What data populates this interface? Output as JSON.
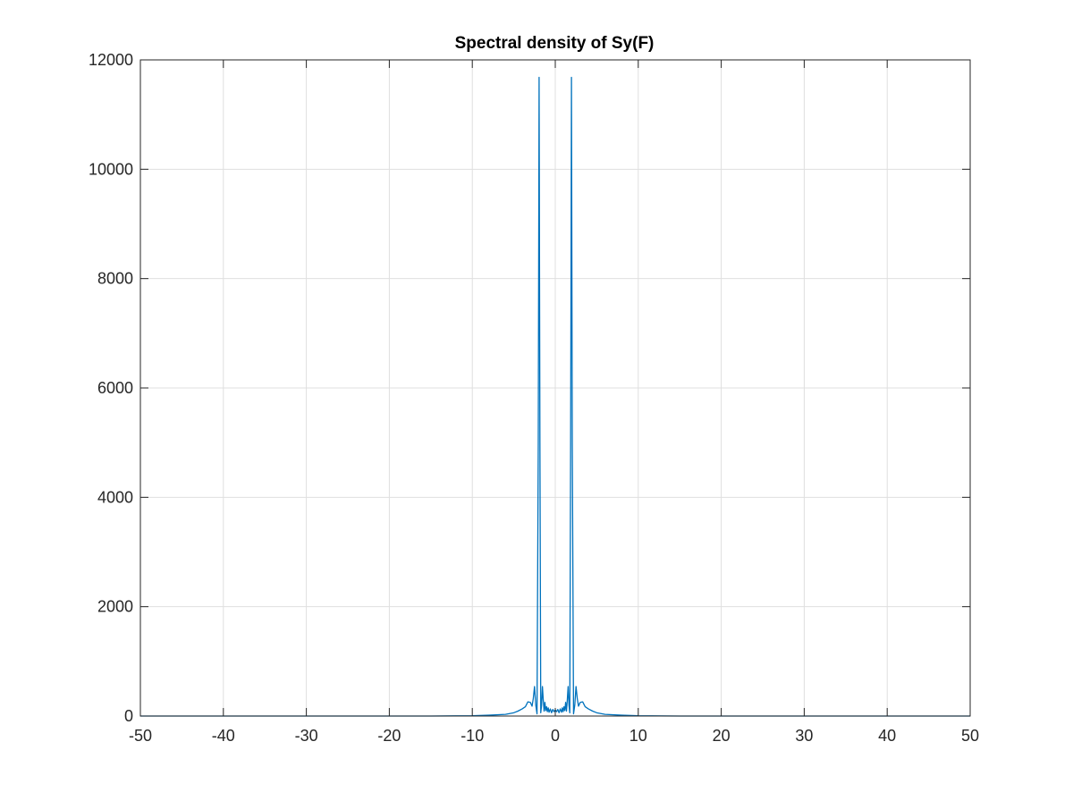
{
  "chart_data": {
    "type": "line",
    "title": "Spectral density of Sy(F)",
    "xlabel": "",
    "ylabel": "",
    "xlim": [
      -50,
      50
    ],
    "ylim": [
      0,
      12000
    ],
    "x_ticks": [
      -50,
      -40,
      -30,
      -20,
      -10,
      0,
      10,
      20,
      30,
      40,
      50
    ],
    "y_ticks": [
      0,
      2000,
      4000,
      6000,
      8000,
      10000,
      12000
    ],
    "x_tick_labels": [
      "-50",
      "-40",
      "-30",
      "-20",
      "-10",
      "0",
      "10",
      "20",
      "30",
      "40",
      "50"
    ],
    "y_tick_labels": [
      "0",
      "2000",
      "4000",
      "6000",
      "8000",
      "10000",
      "12000"
    ],
    "grid": true,
    "box": true,
    "series": [
      {
        "color": "#0072BD",
        "x": [
          -50,
          -15,
          -10,
          -8,
          -6,
          -5,
          -4.5,
          -4,
          -3.6,
          -3.3,
          -3.0,
          -2.8,
          -2.65,
          -2.5,
          -2.35,
          -2.2,
          -2.05,
          -1.95,
          -1.85,
          -1.75,
          -1.65,
          -1.55,
          -1.45,
          -1.35,
          -1.25,
          -1.15,
          -1.05,
          -0.95,
          -0.85,
          -0.75,
          -0.6,
          -0.45,
          -0.3,
          -0.15,
          0,
          0.15,
          0.3,
          0.45,
          0.6,
          0.75,
          0.85,
          0.95,
          1.05,
          1.15,
          1.25,
          1.35,
          1.45,
          1.55,
          1.65,
          1.75,
          1.85,
          1.95,
          2.05,
          2.2,
          2.35,
          2.5,
          2.65,
          2.8,
          3.0,
          3.3,
          3.6,
          4,
          4.5,
          5,
          6,
          8,
          10,
          15,
          50
        ],
        "y": [
          0,
          0,
          5,
          15,
          30,
          60,
          90,
          130,
          170,
          260,
          250,
          180,
          320,
          540,
          200,
          40,
          5000,
          11680,
          5000,
          60,
          200,
          540,
          300,
          90,
          250,
          100,
          170,
          80,
          150,
          70,
          130,
          60,
          120,
          80,
          110,
          80,
          120,
          60,
          130,
          70,
          150,
          80,
          170,
          100,
          250,
          90,
          300,
          540,
          200,
          60,
          5000,
          11680,
          5000,
          40,
          200,
          540,
          320,
          180,
          250,
          260,
          170,
          130,
          90,
          60,
          30,
          15,
          5,
          0,
          0
        ]
      }
    ]
  }
}
